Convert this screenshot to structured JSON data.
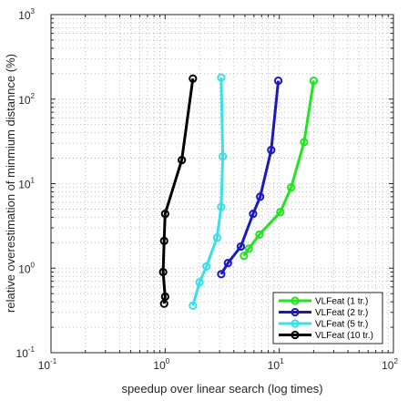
{
  "chart_data": {
    "type": "line",
    "xscale": "log",
    "yscale": "log",
    "xlim": [
      0.1,
      100
    ],
    "ylim": [
      0.1,
      1000
    ],
    "xlabel": "speedup over linear search (log times)",
    "ylabel": "relative overestimation of minmium distannce (%)",
    "x_ticks": [
      {
        "base": "10",
        "exp": "-1"
      },
      {
        "base": "10",
        "exp": "0"
      },
      {
        "base": "10",
        "exp": "1"
      },
      {
        "base": "10",
        "exp": "2"
      }
    ],
    "y_ticks": [
      {
        "base": "10",
        "exp": "-1"
      },
      {
        "base": "10",
        "exp": "0"
      },
      {
        "base": "10",
        "exp": "1"
      },
      {
        "base": "10",
        "exp": "2"
      },
      {
        "base": "10",
        "exp": "3"
      }
    ],
    "grid": true,
    "legend_position": "bottom-right",
    "series": [
      {
        "name": "VLFeat (1 tr.)",
        "color": "#22e422",
        "x": [
          20,
          16.5,
          12.7,
          10.2,
          6.7,
          5.4,
          4.9
        ],
        "y": [
          165,
          31,
          9,
          4.6,
          2.5,
          1.7,
          1.4
        ]
      },
      {
        "name": "VLFeat (2 tr.)",
        "color": "#1a1ab8",
        "x": [
          9.8,
          8.5,
          6.8,
          5.9,
          4.6,
          3.55,
          3.1
        ],
        "y": [
          165,
          25,
          7,
          4.4,
          1.8,
          1.15,
          0.85
        ]
      },
      {
        "name": "VLFeat (5 tr.)",
        "color": "#3ae0e8",
        "x": [
          3.1,
          3.2,
          3.1,
          2.85,
          2.3,
          2.0,
          1.75
        ],
        "y": [
          180,
          21,
          5.3,
          2.3,
          1.05,
          0.68,
          0.36
        ]
      },
      {
        "name": "VLFeat (10 tr.)",
        "color": "#000000",
        "x": [
          1.75,
          1.4,
          1.0,
          0.98,
          0.96,
          1.0,
          0.98
        ],
        "y": [
          175,
          19,
          4.4,
          2.1,
          0.9,
          0.46,
          0.38
        ]
      }
    ]
  }
}
